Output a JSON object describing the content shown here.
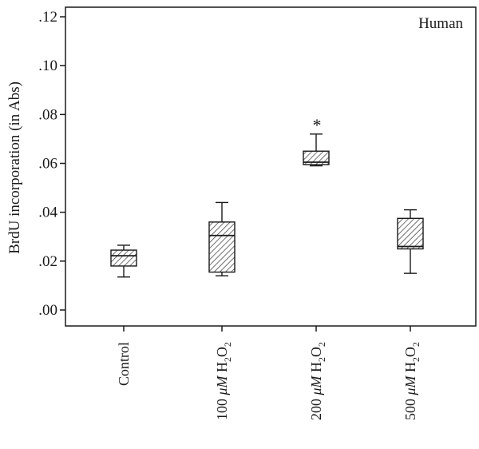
{
  "chart_data": {
    "type": "boxplot",
    "ylabel": "BrdU incorporation (in Abs)",
    "corner_label": "Human",
    "ylim": [
      0.0,
      0.12
    ],
    "y_ticks": [
      0.0,
      0.02,
      0.04,
      0.06,
      0.08,
      0.1,
      0.12
    ],
    "y_tick_labels": [
      ".00",
      ".02",
      ".04",
      ".06",
      ".08",
      ".10",
      ".12"
    ],
    "grid": false,
    "box_fill": "hatched",
    "categories": [
      {
        "label": "Control",
        "dose": "",
        "min": 0.0135,
        "q1": 0.018,
        "median": 0.0222,
        "q3": 0.0245,
        "max": 0.0265,
        "significant": false
      },
      {
        "label": "100 μM H2O2",
        "dose": "100",
        "min": 0.014,
        "q1": 0.0155,
        "median": 0.0305,
        "q3": 0.036,
        "max": 0.044,
        "significant": false
      },
      {
        "label": "200 μM H2O2",
        "dose": "200",
        "min": 0.059,
        "q1": 0.0595,
        "median": 0.0605,
        "q3": 0.065,
        "max": 0.072,
        "significant": true
      },
      {
        "label": "500 μM H2O2",
        "dose": "500",
        "min": 0.015,
        "q1": 0.025,
        "median": 0.026,
        "q3": 0.0375,
        "max": 0.041,
        "significant": false
      }
    ],
    "significance_marker": "*",
    "unit_prefix": "μM",
    "compound_main": "H",
    "compound_sub1": "2",
    "compound_mid": "O",
    "compound_sub2": "2"
  }
}
